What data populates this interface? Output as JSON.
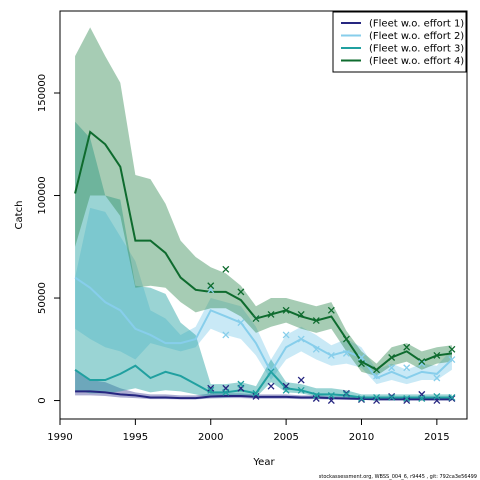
{
  "chart_data": {
    "type": "line",
    "xlabel": "Year",
    "ylabel": "Catch",
    "xlim": [
      1990,
      2017
    ],
    "ylim": [
      -9000,
      190000
    ],
    "xticks": [
      1990,
      1995,
      2000,
      2005,
      2010,
      2015
    ],
    "yticks": [
      0,
      50000,
      100000,
      150000
    ],
    "legend_position": "top-right",
    "footer": "stockassessment.org, WBSS_004_6, r9445 , git: 792ca3e56499",
    "series": [
      {
        "name": "(Fleet w.o. effort 1)",
        "color": "#262680",
        "band_color": "#4b4b9c",
        "x": [
          1991,
          1992,
          1993,
          1994,
          1995,
          1996,
          1997,
          1998,
          1999,
          2000,
          2001,
          2002,
          2003,
          2004,
          2005,
          2006,
          2007,
          2008,
          2009,
          2010,
          2011,
          2012,
          2013,
          2014,
          2015,
          2016
        ],
        "fit": [
          4500,
          4500,
          4000,
          3000,
          2500,
          1500,
          1500,
          1200,
          1200,
          2000,
          2200,
          2200,
          1800,
          1800,
          1800,
          1500,
          1500,
          1200,
          1000,
          800,
          600,
          600,
          600,
          600,
          600,
          600
        ],
        "lower": [
          2500,
          2500,
          2200,
          1500,
          1200,
          700,
          700,
          600,
          600,
          1000,
          1200,
          1200,
          900,
          900,
          900,
          700,
          700,
          500,
          400,
          300,
          200,
          200,
          200,
          200,
          200,
          200
        ],
        "upper": [
          15000,
          10000,
          9000,
          6000,
          4000,
          3000,
          3000,
          2500,
          2500,
          3500,
          3500,
          3500,
          3000,
          3000,
          3000,
          2500,
          2500,
          2200,
          2000,
          1500,
          1200,
          1200,
          1200,
          1200,
          1200,
          1200
        ],
        "obs_x": [
          2000,
          2001,
          2002,
          2003,
          2004,
          2005,
          2006,
          2007,
          2008,
          2009,
          2010,
          2011,
          2012,
          2013,
          2014,
          2015,
          2016
        ],
        "obs": [
          6000,
          6000,
          6000,
          2000,
          7000,
          7000,
          10000,
          1000,
          0,
          3500,
          500,
          0,
          2000,
          0,
          3000,
          0,
          1000
        ]
      },
      {
        "name": "(Fleet w.o. effort 2)",
        "color": "#87ceeb",
        "band_color": "#87ceeb",
        "x": [
          1991,
          1992,
          1993,
          1994,
          1995,
          1996,
          1997,
          1998,
          1999,
          2000,
          2001,
          2002,
          2003,
          2004,
          2005,
          2006,
          2007,
          2008,
          2009,
          2010,
          2011,
          2012,
          2013,
          2014,
          2015,
          2016
        ],
        "fit": [
          60000,
          55000,
          48000,
          44000,
          35000,
          32000,
          28000,
          28000,
          30000,
          44000,
          41000,
          38000,
          28000,
          14000,
          26000,
          30000,
          26000,
          22000,
          24000,
          21000,
          11000,
          14000,
          11000,
          14000,
          13000,
          20000
        ],
        "lower": [
          35000,
          30000,
          26000,
          24000,
          20000,
          28000,
          26000,
          24000,
          26000,
          35000,
          32000,
          30000,
          22000,
          10000,
          20000,
          24000,
          20000,
          17000,
          18000,
          16000,
          8000,
          10000,
          8000,
          10000,
          10000,
          15000
        ],
        "upper": [
          60000,
          94000,
          92000,
          80000,
          68000,
          44000,
          40000,
          32000,
          36000,
          50000,
          48000,
          46000,
          36000,
          20000,
          32000,
          36000,
          32000,
          27000,
          30000,
          26000,
          15000,
          18000,
          15000,
          18000,
          17000,
          25000
        ],
        "obs_x": [
          2000,
          2001,
          2002,
          2003,
          2004,
          2005,
          2006,
          2007,
          2008,
          2009,
          2010,
          2011,
          2012,
          2013,
          2014,
          2015,
          2016
        ],
        "obs": [
          54000,
          32000,
          38000,
          40000,
          14000,
          32000,
          30000,
          25000,
          22000,
          23000,
          21000,
          12000,
          16000,
          16000,
          18000,
          11000,
          20000
        ]
      },
      {
        "name": "(Fleet w.o. effort 3)",
        "color": "#20a0a0",
        "band_color": "#20a0a0",
        "x": [
          1991,
          1992,
          1993,
          1994,
          1995,
          1996,
          1997,
          1998,
          1999,
          2000,
          2001,
          2002,
          2003,
          2004,
          2005,
          2006,
          2007,
          2008,
          2009,
          2010,
          2011,
          2012,
          2013,
          2014,
          2015,
          2016
        ],
        "fit": [
          15000,
          10000,
          10000,
          13000,
          17000,
          11000,
          14000,
          12000,
          8000,
          4000,
          4000,
          5000,
          3500,
          14000,
          6000,
          5000,
          3000,
          3000,
          2500,
          1500,
          1500,
          1500,
          1500,
          1500,
          1500,
          1500
        ],
        "lower": [
          5000,
          3500,
          3500,
          4500,
          6000,
          4000,
          5000,
          4500,
          3000,
          1500,
          1500,
          2000,
          1500,
          9000,
          4000,
          3500,
          2000,
          2000,
          1500,
          800,
          800,
          800,
          800,
          800,
          800,
          800
        ],
        "upper": [
          136000,
          128000,
          100000,
          98000,
          56000,
          55000,
          52000,
          38000,
          32000,
          8000,
          8000,
          9000,
          7000,
          20000,
          9000,
          8000,
          6000,
          6000,
          5000,
          3000,
          3000,
          3000,
          3000,
          3000,
          3000,
          3000
        ],
        "obs_x": [
          2000,
          2001,
          2002,
          2003,
          2004,
          2005,
          2006,
          2007,
          2008,
          2009,
          2010,
          2011,
          2012,
          2013,
          2014,
          2015,
          2016
        ],
        "obs": [
          5000,
          4000,
          8000,
          3500,
          14000,
          5000,
          5000,
          2500,
          2500,
          3000,
          1000,
          1500,
          1500,
          1000,
          1000,
          2000,
          1500
        ]
      },
      {
        "name": "(Fleet w.o. effort 4)",
        "color": "#0e6b2e",
        "band_color": "#3a8f58",
        "x": [
          1991,
          1992,
          1993,
          1994,
          1995,
          1996,
          1997,
          1998,
          1999,
          2000,
          2001,
          2002,
          2003,
          2004,
          2005,
          2006,
          2007,
          2008,
          2009,
          2010,
          2011,
          2012,
          2013,
          2014,
          2015,
          2016
        ],
        "fit": [
          101000,
          131000,
          125000,
          114000,
          78000,
          78000,
          72000,
          60000,
          54000,
          53000,
          53000,
          49000,
          40000,
          42000,
          44000,
          41000,
          39000,
          41000,
          30000,
          19000,
          15000,
          21000,
          24000,
          19000,
          22000,
          23000
        ],
        "lower": [
          75000,
          100000,
          100000,
          90000,
          55000,
          56000,
          55000,
          48000,
          43000,
          45000,
          45000,
          41000,
          33000,
          36000,
          38000,
          35000,
          33000,
          35000,
          24000,
          14000,
          12000,
          17000,
          19000,
          15000,
          18000,
          19000
        ],
        "upper": [
          168000,
          182000,
          168000,
          155000,
          110000,
          108000,
          96000,
          78000,
          70000,
          65000,
          62000,
          56000,
          46000,
          50000,
          50000,
          48000,
          46000,
          48000,
          34000,
          24000,
          18000,
          26000,
          28000,
          24000,
          26000,
          27000
        ],
        "obs_x": [
          2000,
          2001,
          2002,
          2003,
          2004,
          2005,
          2006,
          2007,
          2008,
          2009,
          2010,
          2011,
          2012,
          2013,
          2014,
          2015,
          2016
        ],
        "obs": [
          56000,
          64000,
          53000,
          40000,
          42000,
          44000,
          42000,
          39000,
          44000,
          30000,
          18000,
          15000,
          21000,
          26000,
          19000,
          22000,
          25000
        ]
      }
    ]
  }
}
